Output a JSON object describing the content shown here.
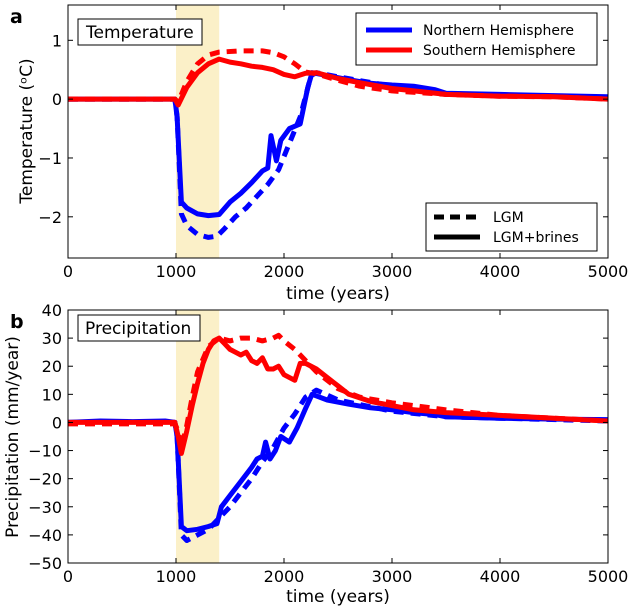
{
  "chart_data": [
    {
      "panel": "a",
      "type": "line",
      "title": "Temperature",
      "xlabel": "time (years)",
      "ylabel": "Temperature (ᵒC)",
      "xlim": [
        0,
        5000
      ],
      "ylim": [
        -2.7,
        1.6
      ],
      "xticks": [
        0,
        1000,
        2000,
        3000,
        4000,
        5000
      ],
      "yticks": [
        1,
        0,
        -1,
        -2
      ],
      "shaded_region": [
        1000,
        1400
      ],
      "legend_hemispheres": [
        {
          "name": "Northern Hemisphere",
          "color": "#0000ff"
        },
        {
          "name": "Southern Hemisphere",
          "color": "#ff0000"
        }
      ],
      "legend_styles": [
        {
          "name": "LGM",
          "style": "dashed"
        },
        {
          "name": "LGM+brines",
          "style": "solid"
        }
      ],
      "series": [
        {
          "hemisphere": "Northern Hemisphere",
          "case": "LGM+brines",
          "color": "#0000ff",
          "style": "solid",
          "points": [
            [
              0,
              0.0
            ],
            [
              300,
              0.0
            ],
            [
              600,
              0.0
            ],
            [
              900,
              0.0
            ],
            [
              990,
              0.0
            ],
            [
              1010,
              -0.3
            ],
            [
              1050,
              -1.75
            ],
            [
              1100,
              -1.85
            ],
            [
              1200,
              -1.95
            ],
            [
              1300,
              -1.98
            ],
            [
              1400,
              -1.96
            ],
            [
              1500,
              -1.75
            ],
            [
              1600,
              -1.6
            ],
            [
              1700,
              -1.42
            ],
            [
              1750,
              -1.32
            ],
            [
              1800,
              -1.22
            ],
            [
              1850,
              -1.17
            ],
            [
              1880,
              -0.62
            ],
            [
              1930,
              -1.05
            ],
            [
              1970,
              -0.7
            ],
            [
              2050,
              -0.5
            ],
            [
              2150,
              -0.42
            ],
            [
              2220,
              0.2
            ],
            [
              2260,
              0.45
            ],
            [
              2400,
              0.4
            ],
            [
              2600,
              0.33
            ],
            [
              2800,
              0.27
            ],
            [
              3000,
              0.24
            ],
            [
              3200,
              0.22
            ],
            [
              3400,
              0.16
            ],
            [
              3500,
              0.1
            ],
            [
              4000,
              0.08
            ],
            [
              4500,
              0.06
            ],
            [
              5000,
              0.04
            ]
          ]
        },
        {
          "hemisphere": "Northern Hemisphere",
          "case": "LGM",
          "color": "#0000ff",
          "style": "dashed",
          "points": [
            [
              0,
              0.0
            ],
            [
              500,
              0.0
            ],
            [
              990,
              0.0
            ],
            [
              1010,
              -0.3
            ],
            [
              1050,
              -1.95
            ],
            [
              1100,
              -2.15
            ],
            [
              1200,
              -2.3
            ],
            [
              1300,
              -2.35
            ],
            [
              1380,
              -2.33
            ],
            [
              1450,
              -2.2
            ],
            [
              1550,
              -2.0
            ],
            [
              1650,
              -1.85
            ],
            [
              1750,
              -1.65
            ],
            [
              1850,
              -1.45
            ],
            [
              1950,
              -1.2
            ],
            [
              2050,
              -0.75
            ],
            [
              2150,
              -0.3
            ],
            [
              2250,
              0.4
            ],
            [
              2300,
              0.45
            ],
            [
              2500,
              0.38
            ],
            [
              3000,
              0.22
            ],
            [
              3500,
              0.08
            ],
            [
              4000,
              0.07
            ],
            [
              5000,
              0.02
            ]
          ]
        },
        {
          "hemisphere": "Southern Hemisphere",
          "case": "LGM+brines",
          "color": "#ff0000",
          "style": "solid",
          "points": [
            [
              0,
              0.0
            ],
            [
              500,
              0.0
            ],
            [
              990,
              0.0
            ],
            [
              1020,
              -0.1
            ],
            [
              1100,
              0.2
            ],
            [
              1200,
              0.45
            ],
            [
              1300,
              0.6
            ],
            [
              1400,
              0.68
            ],
            [
              1500,
              0.63
            ],
            [
              1600,
              0.6
            ],
            [
              1700,
              0.56
            ],
            [
              1800,
              0.54
            ],
            [
              1900,
              0.5
            ],
            [
              2000,
              0.42
            ],
            [
              2100,
              0.38
            ],
            [
              2200,
              0.44
            ],
            [
              2300,
              0.45
            ],
            [
              2500,
              0.35
            ],
            [
              2700,
              0.28
            ],
            [
              3000,
              0.18
            ],
            [
              3500,
              0.08
            ],
            [
              4000,
              0.05
            ],
            [
              4500,
              0.04
            ],
            [
              5000,
              0.0
            ]
          ]
        },
        {
          "hemisphere": "Southern Hemisphere",
          "case": "LGM",
          "color": "#ff0000",
          "style": "dashed",
          "points": [
            [
              0,
              0.0
            ],
            [
              500,
              0.0
            ],
            [
              990,
              0.0
            ],
            [
              1020,
              -0.05
            ],
            [
              1100,
              0.3
            ],
            [
              1200,
              0.6
            ],
            [
              1300,
              0.75
            ],
            [
              1400,
              0.8
            ],
            [
              1600,
              0.82
            ],
            [
              1800,
              0.82
            ],
            [
              1900,
              0.79
            ],
            [
              2000,
              0.72
            ],
            [
              2100,
              0.6
            ],
            [
              2200,
              0.46
            ],
            [
              2300,
              0.43
            ],
            [
              2500,
              0.32
            ],
            [
              2700,
              0.22
            ],
            [
              3000,
              0.14
            ],
            [
              3500,
              0.08
            ],
            [
              4000,
              0.05
            ],
            [
              4500,
              0.04
            ],
            [
              5000,
              0.0
            ]
          ]
        }
      ]
    },
    {
      "panel": "b",
      "type": "line",
      "title": "Precipitation",
      "xlabel": "time (years)",
      "ylabel": "Precipitation (mm/year)",
      "xlim": [
        0,
        5000
      ],
      "ylim": [
        -50,
        40
      ],
      "xticks": [
        0,
        1000,
        2000,
        3000,
        4000,
        5000
      ],
      "yticks": [
        40,
        30,
        20,
        10,
        0,
        -10,
        -20,
        -30,
        -40,
        -50
      ],
      "shaded_region": [
        1000,
        1400
      ],
      "series": [
        {
          "hemisphere": "Northern Hemisphere",
          "case": "LGM+brines",
          "color": "#0000ff",
          "style": "solid",
          "points": [
            [
              0,
              0.0
            ],
            [
              300,
              0.5
            ],
            [
              600,
              0.3
            ],
            [
              900,
              0.5
            ],
            [
              990,
              0.0
            ],
            [
              1010,
              -5
            ],
            [
              1050,
              -37
            ],
            [
              1100,
              -38.5
            ],
            [
              1200,
              -38
            ],
            [
              1300,
              -37
            ],
            [
              1380,
              -36
            ],
            [
              1420,
              -30
            ],
            [
              1500,
              -26
            ],
            [
              1600,
              -21
            ],
            [
              1700,
              -16
            ],
            [
              1750,
              -13
            ],
            [
              1800,
              -12
            ],
            [
              1830,
              -7
            ],
            [
              1870,
              -13
            ],
            [
              1920,
              -10
            ],
            [
              1970,
              -5
            ],
            [
              2050,
              -7
            ],
            [
              2120,
              -2
            ],
            [
              2200,
              5
            ],
            [
              2260,
              10
            ],
            [
              2400,
              8
            ],
            [
              2600,
              6.5
            ],
            [
              2800,
              5.2
            ],
            [
              3000,
              4.5
            ],
            [
              3200,
              3.5
            ],
            [
              3400,
              2.8
            ],
            [
              3500,
              2.0
            ],
            [
              4000,
              1.5
            ],
            [
              4500,
              1.2
            ],
            [
              5000,
              1.0
            ]
          ]
        },
        {
          "hemisphere": "Northern Hemisphere",
          "case": "LGM",
          "color": "#0000ff",
          "style": "dashed",
          "points": [
            [
              0,
              0.0
            ],
            [
              500,
              0.0
            ],
            [
              990,
              0.0
            ],
            [
              1010,
              -5
            ],
            [
              1050,
              -40
            ],
            [
              1100,
              -42
            ],
            [
              1200,
              -40
            ],
            [
              1300,
              -38
            ],
            [
              1400,
              -34
            ],
            [
              1500,
              -30
            ],
            [
              1600,
              -25
            ],
            [
              1700,
              -20
            ],
            [
              1800,
              -14
            ],
            [
              1900,
              -9
            ],
            [
              2000,
              -2
            ],
            [
              2100,
              3
            ],
            [
              2200,
              9
            ],
            [
              2300,
              11.5
            ],
            [
              2500,
              8
            ],
            [
              3000,
              4
            ],
            [
              3500,
              2
            ],
            [
              4000,
              1.5
            ],
            [
              5000,
              0.5
            ]
          ]
        },
        {
          "hemisphere": "Southern Hemisphere",
          "case": "LGM+brines",
          "color": "#ff0000",
          "style": "solid",
          "points": [
            [
              0,
              0.0
            ],
            [
              500,
              0.0
            ],
            [
              990,
              0.0
            ],
            [
              1020,
              -5
            ],
            [
              1050,
              -11
            ],
            [
              1100,
              -3
            ],
            [
              1150,
              6
            ],
            [
              1200,
              14
            ],
            [
              1250,
              21
            ],
            [
              1300,
              26
            ],
            [
              1350,
              29
            ],
            [
              1400,
              30
            ],
            [
              1450,
              28
            ],
            [
              1500,
              26
            ],
            [
              1550,
              25
            ],
            [
              1600,
              24
            ],
            [
              1650,
              25
            ],
            [
              1700,
              22
            ],
            [
              1750,
              21
            ],
            [
              1800,
              23
            ],
            [
              1850,
              19
            ],
            [
              1900,
              19
            ],
            [
              1950,
              20
            ],
            [
              2000,
              17
            ],
            [
              2100,
              15
            ],
            [
              2150,
              21
            ],
            [
              2200,
              21
            ],
            [
              2300,
              19
            ],
            [
              2400,
              16
            ],
            [
              2500,
              13
            ],
            [
              2600,
              10
            ],
            [
              2800,
              7.5
            ],
            [
              3000,
              6
            ],
            [
              3200,
              4.5
            ],
            [
              3500,
              3.5
            ],
            [
              4000,
              2.5
            ],
            [
              4500,
              1.5
            ],
            [
              5000,
              0.5
            ]
          ]
        },
        {
          "hemisphere": "Southern Hemisphere",
          "case": "LGM",
          "color": "#ff0000",
          "style": "dashed",
          "points": [
            [
              0,
              -0.5
            ],
            [
              500,
              -0.5
            ],
            [
              990,
              -0.5
            ],
            [
              1020,
              -3
            ],
            [
              1050,
              -9
            ],
            [
              1100,
              -1
            ],
            [
              1150,
              9
            ],
            [
              1200,
              18
            ],
            [
              1300,
              27
            ],
            [
              1400,
              30
            ],
            [
              1500,
              29
            ],
            [
              1600,
              30
            ],
            [
              1700,
              30
            ],
            [
              1800,
              29
            ],
            [
              1900,
              30
            ],
            [
              1950,
              31
            ],
            [
              2000,
              29
            ],
            [
              2100,
              26
            ],
            [
              2200,
              22
            ],
            [
              2300,
              18
            ],
            [
              2500,
              12
            ],
            [
              2700,
              9
            ],
            [
              3000,
              7
            ],
            [
              3500,
              4.5
            ],
            [
              4000,
              2.5
            ],
            [
              4500,
              1.5
            ],
            [
              5000,
              0.5
            ]
          ]
        }
      ]
    }
  ]
}
